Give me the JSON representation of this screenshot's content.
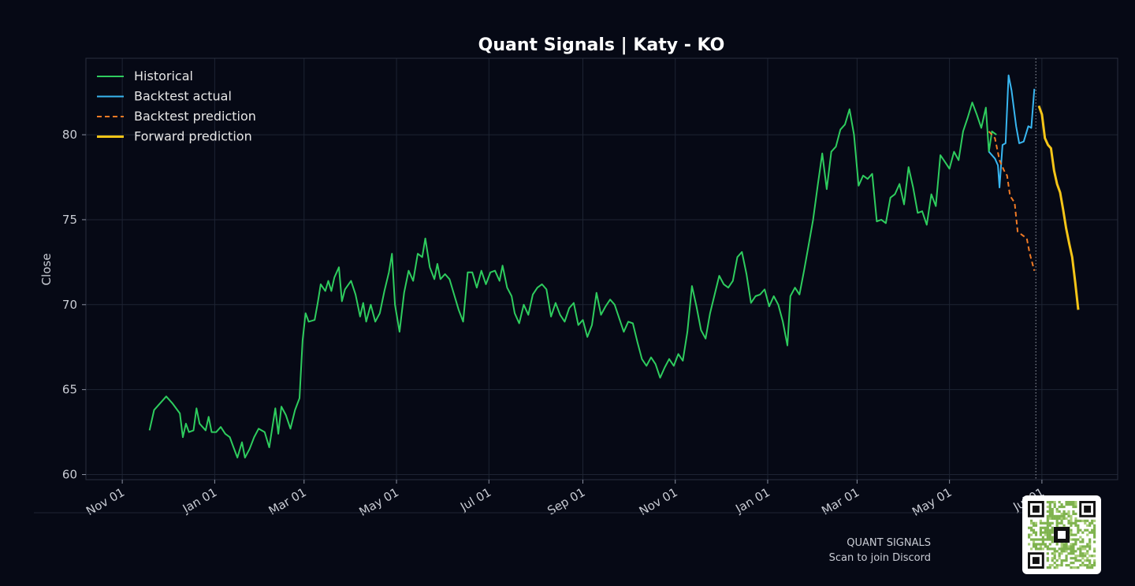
{
  "chart_data": {
    "type": "line",
    "title": "Quant Signals | Katy - KO",
    "xlabel": "",
    "ylabel": "Close",
    "ylim": [
      59.7,
      84.5
    ],
    "yticks": [
      60,
      65,
      70,
      75,
      80
    ],
    "xlim": [
      "2024-10-08",
      "2026-08-20"
    ],
    "xticks": [
      {
        "date": "2024-11-01",
        "label": "Nov 01"
      },
      {
        "date": "2025-01-01",
        "label": "Jan 01"
      },
      {
        "date": "2025-03-01",
        "label": "Mar 01"
      },
      {
        "date": "2025-05-01",
        "label": "May 01"
      },
      {
        "date": "2025-07-01",
        "label": "Jul 01"
      },
      {
        "date": "2025-09-01",
        "label": "Sep 01"
      },
      {
        "date": "2025-11-01",
        "label": "Nov 01"
      },
      {
        "date": "2026-01-01",
        "label": "Jan 01"
      },
      {
        "date": "2026-03-01",
        "label": "Mar 01"
      },
      {
        "date": "2026-05-01",
        "label": "May 01"
      },
      {
        "date": "2026-07-01",
        "label": "Jul 01"
      }
    ],
    "grid": true,
    "legend_position": "top-left",
    "cutoff_date": "2026-06-27",
    "series": [
      {
        "name": "Historical",
        "color": "#2ecc5e",
        "style": "solid",
        "points": [
          [
            "2024-11-19",
            62.6
          ],
          [
            "2024-11-22",
            63.8
          ],
          [
            "2024-11-27",
            64.3
          ],
          [
            "2024-11-30",
            64.6
          ],
          [
            "2024-12-04",
            64.2
          ],
          [
            "2024-12-09",
            63.6
          ],
          [
            "2024-12-11",
            62.2
          ],
          [
            "2024-12-13",
            63.0
          ],
          [
            "2024-12-15",
            62.5
          ],
          [
            "2024-12-18",
            62.6
          ],
          [
            "2024-12-20",
            63.9
          ],
          [
            "2024-12-22",
            63.0
          ],
          [
            "2024-12-26",
            62.6
          ],
          [
            "2024-12-28",
            63.4
          ],
          [
            "2024-12-30",
            62.5
          ],
          [
            "2025-01-02",
            62.5
          ],
          [
            "2025-01-05",
            62.8
          ],
          [
            "2025-01-08",
            62.4
          ],
          [
            "2025-01-11",
            62.2
          ],
          [
            "2025-01-13",
            61.7
          ],
          [
            "2025-01-16",
            61.0
          ],
          [
            "2025-01-19",
            61.9
          ],
          [
            "2025-01-21",
            61.0
          ],
          [
            "2025-01-24",
            61.5
          ],
          [
            "2025-01-27",
            62.2
          ],
          [
            "2025-01-30",
            62.7
          ],
          [
            "2025-02-03",
            62.5
          ],
          [
            "2025-02-06",
            61.6
          ],
          [
            "2025-02-10",
            63.9
          ],
          [
            "2025-02-12",
            62.4
          ],
          [
            "2025-02-14",
            64.0
          ],
          [
            "2025-02-17",
            63.5
          ],
          [
            "2025-02-20",
            62.7
          ],
          [
            "2025-02-23",
            63.8
          ],
          [
            "2025-02-26",
            64.5
          ],
          [
            "2025-02-28",
            67.9
          ],
          [
            "2025-03-02",
            69.5
          ],
          [
            "2025-03-04",
            69.0
          ],
          [
            "2025-03-08",
            69.1
          ],
          [
            "2025-03-10",
            70.1
          ],
          [
            "2025-03-12",
            71.2
          ],
          [
            "2025-03-15",
            70.8
          ],
          [
            "2025-03-17",
            71.4
          ],
          [
            "2025-03-19",
            70.8
          ],
          [
            "2025-03-21",
            71.6
          ],
          [
            "2025-03-24",
            72.2
          ],
          [
            "2025-03-26",
            70.2
          ],
          [
            "2025-03-28",
            70.9
          ],
          [
            "2025-04-01",
            71.4
          ],
          [
            "2025-04-04",
            70.6
          ],
          [
            "2025-04-07",
            69.3
          ],
          [
            "2025-04-09",
            70.1
          ],
          [
            "2025-04-11",
            69.0
          ],
          [
            "2025-04-14",
            70.0
          ],
          [
            "2025-04-17",
            69.0
          ],
          [
            "2025-04-20",
            69.5
          ],
          [
            "2025-04-23",
            70.8
          ],
          [
            "2025-04-26",
            71.9
          ],
          [
            "2025-04-28",
            73.0
          ],
          [
            "2025-04-30",
            70.0
          ],
          [
            "2025-05-03",
            68.4
          ],
          [
            "2025-05-06",
            70.7
          ],
          [
            "2025-05-09",
            72.0
          ],
          [
            "2025-05-12",
            71.4
          ],
          [
            "2025-05-15",
            73.0
          ],
          [
            "2025-05-18",
            72.8
          ],
          [
            "2025-05-20",
            73.9
          ],
          [
            "2025-05-23",
            72.2
          ],
          [
            "2025-05-26",
            71.5
          ],
          [
            "2025-05-28",
            72.4
          ],
          [
            "2025-05-30",
            71.5
          ],
          [
            "2025-06-02",
            71.8
          ],
          [
            "2025-06-05",
            71.5
          ],
          [
            "2025-06-08",
            70.6
          ],
          [
            "2025-06-11",
            69.7
          ],
          [
            "2025-06-14",
            69.0
          ],
          [
            "2025-06-17",
            71.9
          ],
          [
            "2025-06-20",
            71.9
          ],
          [
            "2025-06-23",
            71.0
          ],
          [
            "2025-06-26",
            72.0
          ],
          [
            "2025-06-29",
            71.2
          ],
          [
            "2025-07-02",
            71.9
          ],
          [
            "2025-07-05",
            72.0
          ],
          [
            "2025-07-08",
            71.4
          ],
          [
            "2025-07-10",
            72.3
          ],
          [
            "2025-07-13",
            71.0
          ],
          [
            "2025-07-16",
            70.5
          ],
          [
            "2025-07-18",
            69.5
          ],
          [
            "2025-07-21",
            68.9
          ],
          [
            "2025-07-24",
            70.0
          ],
          [
            "2025-07-27",
            69.4
          ],
          [
            "2025-07-30",
            70.6
          ],
          [
            "2025-08-02",
            71.0
          ],
          [
            "2025-08-05",
            71.2
          ],
          [
            "2025-08-08",
            70.9
          ],
          [
            "2025-08-11",
            69.3
          ],
          [
            "2025-08-14",
            70.1
          ],
          [
            "2025-08-17",
            69.4
          ],
          [
            "2025-08-20",
            69.0
          ],
          [
            "2025-08-23",
            69.8
          ],
          [
            "2025-08-26",
            70.1
          ],
          [
            "2025-08-29",
            68.8
          ],
          [
            "2025-09-01",
            69.1
          ],
          [
            "2025-09-04",
            68.1
          ],
          [
            "2025-09-07",
            68.8
          ],
          [
            "2025-09-10",
            70.7
          ],
          [
            "2025-09-13",
            69.4
          ],
          [
            "2025-09-16",
            69.9
          ],
          [
            "2025-09-19",
            70.3
          ],
          [
            "2025-09-22",
            70.0
          ],
          [
            "2025-09-25",
            69.2
          ],
          [
            "2025-09-28",
            68.4
          ],
          [
            "2025-10-01",
            69.0
          ],
          [
            "2025-10-04",
            68.9
          ],
          [
            "2025-10-07",
            67.8
          ],
          [
            "2025-10-10",
            66.8
          ],
          [
            "2025-10-13",
            66.4
          ],
          [
            "2025-10-16",
            66.9
          ],
          [
            "2025-10-19",
            66.5
          ],
          [
            "2025-10-22",
            65.7
          ],
          [
            "2025-10-25",
            66.3
          ],
          [
            "2025-10-28",
            66.8
          ],
          [
            "2025-10-31",
            66.4
          ],
          [
            "2025-11-03",
            67.1
          ],
          [
            "2025-11-06",
            66.7
          ],
          [
            "2025-11-09",
            68.4
          ],
          [
            "2025-11-12",
            71.1
          ],
          [
            "2025-11-15",
            69.9
          ],
          [
            "2025-11-18",
            68.5
          ],
          [
            "2025-11-21",
            68.0
          ],
          [
            "2025-11-24",
            69.5
          ],
          [
            "2025-11-27",
            70.6
          ],
          [
            "2025-11-30",
            71.7
          ],
          [
            "2025-12-03",
            71.2
          ],
          [
            "2025-12-06",
            71.0
          ],
          [
            "2025-12-09",
            71.4
          ],
          [
            "2025-12-12",
            72.8
          ],
          [
            "2025-12-15",
            73.1
          ],
          [
            "2025-12-18",
            71.8
          ],
          [
            "2025-12-21",
            70.1
          ],
          [
            "2025-12-24",
            70.5
          ],
          [
            "2025-12-27",
            70.6
          ],
          [
            "2025-12-30",
            70.9
          ],
          [
            "2026-01-02",
            69.9
          ],
          [
            "2026-01-05",
            70.5
          ],
          [
            "2026-01-08",
            70.0
          ],
          [
            "2026-01-11",
            69.0
          ],
          [
            "2026-01-14",
            67.6
          ],
          [
            "2026-01-16",
            70.5
          ],
          [
            "2026-01-19",
            71.0
          ],
          [
            "2026-01-22",
            70.6
          ],
          [
            "2026-01-25",
            72.0
          ],
          [
            "2026-01-28",
            73.5
          ],
          [
            "2026-01-31",
            75.0
          ],
          [
            "2026-02-03",
            77.0
          ],
          [
            "2026-02-06",
            78.9
          ],
          [
            "2026-02-09",
            76.8
          ],
          [
            "2026-02-12",
            79.0
          ],
          [
            "2026-02-15",
            79.3
          ],
          [
            "2026-02-18",
            80.3
          ],
          [
            "2026-02-21",
            80.6
          ],
          [
            "2026-02-24",
            81.5
          ],
          [
            "2026-02-27",
            80.0
          ],
          [
            "2026-03-02",
            77.0
          ],
          [
            "2026-03-05",
            77.6
          ],
          [
            "2026-03-08",
            77.4
          ],
          [
            "2026-03-11",
            77.7
          ],
          [
            "2026-03-14",
            74.9
          ],
          [
            "2026-03-17",
            75.0
          ],
          [
            "2026-03-20",
            74.8
          ],
          [
            "2026-03-23",
            76.3
          ],
          [
            "2026-03-26",
            76.5
          ],
          [
            "2026-03-29",
            77.1
          ],
          [
            "2026-04-01",
            75.9
          ],
          [
            "2026-04-04",
            78.1
          ],
          [
            "2026-04-07",
            76.9
          ],
          [
            "2026-04-10",
            75.4
          ],
          [
            "2026-04-13",
            75.5
          ],
          [
            "2026-04-16",
            74.7
          ],
          [
            "2026-04-19",
            76.5
          ],
          [
            "2026-04-22",
            75.8
          ],
          [
            "2026-04-25",
            78.8
          ],
          [
            "2026-04-28",
            78.4
          ],
          [
            "2026-05-01",
            78.0
          ],
          [
            "2026-05-04",
            79.0
          ],
          [
            "2026-05-07",
            78.5
          ],
          [
            "2026-05-10",
            80.2
          ],
          [
            "2026-05-13",
            81.0
          ],
          [
            "2026-05-16",
            81.9
          ],
          [
            "2026-05-19",
            81.2
          ],
          [
            "2026-05-22",
            80.4
          ],
          [
            "2026-05-25",
            81.6
          ],
          [
            "2026-05-27",
            79.0
          ],
          [
            "2026-05-29",
            80.2
          ],
          [
            "2026-06-01",
            80.0
          ]
        ]
      },
      {
        "name": "Backtest actual",
        "color": "#38b6f0",
        "style": "solid",
        "points": [
          [
            "2026-05-27",
            79.0
          ],
          [
            "2026-05-31",
            78.6
          ],
          [
            "2026-06-02",
            78.2
          ],
          [
            "2026-06-03",
            76.9
          ],
          [
            "2026-06-05",
            79.4
          ],
          [
            "2026-06-07",
            79.5
          ],
          [
            "2026-06-09",
            83.5
          ],
          [
            "2026-06-11",
            82.6
          ],
          [
            "2026-06-14",
            80.5
          ],
          [
            "2026-06-16",
            79.5
          ],
          [
            "2026-06-19",
            79.6
          ],
          [
            "2026-06-22",
            80.5
          ],
          [
            "2026-06-24",
            80.4
          ],
          [
            "2026-06-26",
            82.7
          ]
        ]
      },
      {
        "name": "Backtest prediction",
        "color": "#f07a25",
        "style": "dashed",
        "points": [
          [
            "2026-05-27",
            80.2
          ],
          [
            "2026-05-31",
            79.8
          ],
          [
            "2026-06-03",
            78.5
          ],
          [
            "2026-06-06",
            77.9
          ],
          [
            "2026-06-08",
            77.6
          ],
          [
            "2026-06-10",
            76.4
          ],
          [
            "2026-06-13",
            76.0
          ],
          [
            "2026-06-15",
            74.3
          ],
          [
            "2026-06-18",
            74.1
          ],
          [
            "2026-06-21",
            73.9
          ],
          [
            "2026-06-23",
            73.0
          ],
          [
            "2026-06-26",
            72.0
          ]
        ]
      },
      {
        "name": "Forward prediction",
        "color": "#f5c518",
        "style": "solid",
        "points": [
          [
            "2026-06-29",
            81.7
          ],
          [
            "2026-07-01",
            81.2
          ],
          [
            "2026-07-03",
            79.8
          ],
          [
            "2026-07-05",
            79.4
          ],
          [
            "2026-07-07",
            79.2
          ],
          [
            "2026-07-09",
            77.9
          ],
          [
            "2026-07-11",
            77.1
          ],
          [
            "2026-07-13",
            76.6
          ],
          [
            "2026-07-15",
            75.6
          ],
          [
            "2026-07-17",
            74.5
          ],
          [
            "2026-07-19",
            73.6
          ],
          [
            "2026-07-21",
            72.8
          ],
          [
            "2026-07-23",
            71.3
          ],
          [
            "2026-07-25",
            69.7
          ]
        ]
      }
    ]
  },
  "footer": {
    "brand": "QUANT SIGNALS",
    "cta": "Scan to join Discord"
  },
  "colors": {
    "background": "#060915",
    "grid": "#1e2433",
    "axis": "#3a4152"
  }
}
